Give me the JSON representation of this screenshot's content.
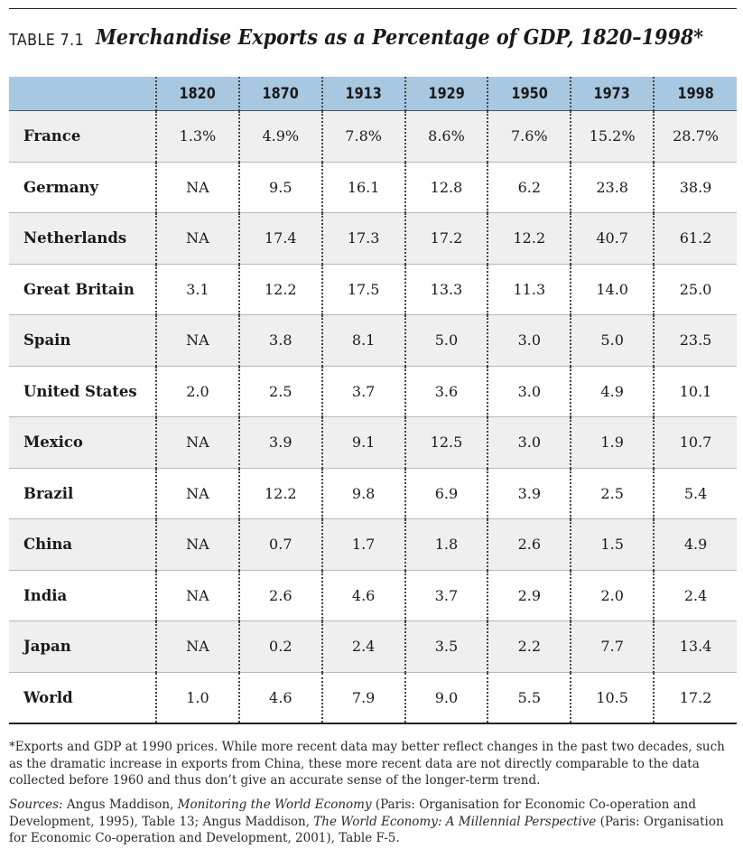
{
  "header": {
    "table_label": "TABLE 7.1",
    "title": "Merchandise Exports as a Percentage of GDP, 1820–1998*"
  },
  "table": {
    "columns": [
      "1820",
      "1870",
      "1913",
      "1929",
      "1950",
      "1973",
      "1998"
    ],
    "rows": [
      {
        "country": "France",
        "values": [
          "1.3%",
          "4.9%",
          "7.8%",
          "8.6%",
          "7.6%",
          "15.2%",
          "28.7%"
        ]
      },
      {
        "country": "Germany",
        "values": [
          "NA",
          "9.5",
          "16.1",
          "12.8",
          "6.2",
          "23.8",
          "38.9"
        ]
      },
      {
        "country": "Netherlands",
        "values": [
          "NA",
          "17.4",
          "17.3",
          "17.2",
          "12.2",
          "40.7",
          "61.2"
        ]
      },
      {
        "country": "Great Britain",
        "values": [
          "3.1",
          "12.2",
          "17.5",
          "13.3",
          "11.3",
          "14.0",
          "25.0"
        ]
      },
      {
        "country": "Spain",
        "values": [
          "NA",
          "3.8",
          "8.1",
          "5.0",
          "3.0",
          "5.0",
          "23.5"
        ]
      },
      {
        "country": "United States",
        "values": [
          "2.0",
          "2.5",
          "3.7",
          "3.6",
          "3.0",
          "4.9",
          "10.1"
        ]
      },
      {
        "country": "Mexico",
        "values": [
          "NA",
          "3.9",
          "9.1",
          "12.5",
          "3.0",
          "1.9",
          "10.7"
        ]
      },
      {
        "country": "Brazil",
        "values": [
          "NA",
          "12.2",
          "9.8",
          "6.9",
          "3.9",
          "2.5",
          "5.4"
        ]
      },
      {
        "country": "China",
        "values": [
          "NA",
          "0.7",
          "1.7",
          "1.8",
          "2.6",
          "1.5",
          "4.9"
        ]
      },
      {
        "country": "India",
        "values": [
          "NA",
          "2.6",
          "4.6",
          "3.7",
          "2.9",
          "2.0",
          "2.4"
        ]
      },
      {
        "country": "Japan",
        "values": [
          "NA",
          "0.2",
          "2.4",
          "3.5",
          "2.2",
          "7.7",
          "13.4"
        ]
      },
      {
        "country": "World",
        "values": [
          "1.0",
          "4.6",
          "7.9",
          "9.0",
          "5.5",
          "10.5",
          "17.2"
        ]
      }
    ]
  },
  "footnote": "*Exports and GDP at 1990 prices. While more recent data may better reflect changes in the past two decades, such as the dramatic increase in exports from China, these more recent data are not directly comparable to the data collected before 1960 and thus don’t give an accurate sense of the longer-term trend.",
  "sources": {
    "label": "Sources:",
    "part1": " Angus Maddison, ",
    "book1": "Monitoring the World Economy",
    "part2": " (Paris: Organisation for Economic Co-operation and Development, 1995), Table 13; Angus Maddison, ",
    "book2": "The World Economy: A Millennial Perspective",
    "part3": " (Paris: Organisation for Economic Co-operation and Development, 2001), Table F-5."
  }
}
